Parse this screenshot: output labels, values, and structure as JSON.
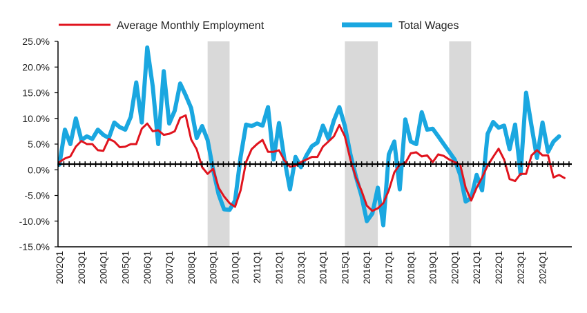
{
  "chart_data": {
    "type": "line",
    "title": "",
    "xlabel": "",
    "ylabel": "",
    "ylim": [
      -15,
      25
    ],
    "y_ticks": [
      "25.0%",
      "20.0%",
      "15.0%",
      "10.0%",
      "5.0%",
      "0.0%",
      "-5.0%",
      "-10.0%",
      "-15.0%"
    ],
    "y_tick_values": [
      25,
      20,
      15,
      10,
      5,
      0,
      -5,
      -10,
      -15
    ],
    "x_tick_labels": [
      "2002Q1",
      "2003Q1",
      "2004Q1",
      "2005Q1",
      "2006Q1",
      "2007Q1",
      "2008Q1",
      "2009Q1",
      "2010Q1",
      "2011Q1",
      "2012Q1",
      "2013Q1",
      "2014Q1",
      "2015Q1",
      "2016Q1",
      "2017Q1",
      "2018Q1",
      "2019Q1",
      "2020Q1",
      "2021Q1",
      "2022Q1",
      "2023Q1",
      "2024Q1"
    ],
    "x_start_year": 2002,
    "legend_position": "top",
    "zero_line": "dotted",
    "grid": false,
    "recession_shading": [
      {
        "start": "2008Q4",
        "end": "2009Q4"
      },
      {
        "start": "2015Q1",
        "end": "2016Q3"
      },
      {
        "start": "2019Q4",
        "end": "2020Q4"
      }
    ],
    "colors": {
      "shade": "#d9d9d9",
      "employment": "#e0141e",
      "wages": "#1aa7e0",
      "axis": "#000000"
    },
    "series": [
      {
        "name": "Average Monthly Employment",
        "values": [
          1.5,
          2.2,
          2.6,
          4.5,
          5.6,
          5.0,
          5.0,
          3.8,
          3.7,
          6.0,
          5.5,
          4.4,
          4.5,
          5.0,
          5.0,
          8.0,
          9.0,
          7.5,
          7.7,
          6.8,
          7.0,
          7.5,
          10.1,
          10.6,
          5.9,
          4.0,
          0.5,
          -0.8,
          0.2,
          -3.5,
          -5.2,
          -6.5,
          -7.2,
          -4.0,
          1.5,
          4.0,
          5.0,
          5.8,
          3.5,
          3.5,
          3.8,
          1.8,
          0.6,
          0.8,
          1.5,
          2.0,
          2.5,
          2.5,
          4.5,
          5.5,
          6.5,
          8.7,
          6.5,
          2.0,
          -1.5,
          -4.0,
          -7.0,
          -8.0,
          -7.5,
          -6.5,
          -4.0,
          -0.5,
          1.0,
          1.3,
          3.2,
          3.4,
          2.6,
          2.8,
          1.5,
          3.0,
          2.7,
          2.0,
          1.5,
          1.0,
          -3.5,
          -6.0,
          -3.5,
          -1.5,
          0.8,
          2.5,
          4.1,
          2.0,
          -1.8,
          -2.2,
          -0.8,
          -0.8,
          2.8,
          3.8,
          2.8,
          2.8,
          -1.5,
          -1.0,
          -1.6
        ]
      },
      {
        "name": "Total Wages",
        "values": [
          1.0,
          7.8,
          5.0,
          10.0,
          5.8,
          6.5,
          6.0,
          7.8,
          6.8,
          6.2,
          9.2,
          8.3,
          7.8,
          10.3,
          17.0,
          9.2,
          23.8,
          16.2,
          5.0,
          19.2,
          9.0,
          11.5,
          16.8,
          14.5,
          12.0,
          6.2,
          8.5,
          5.8,
          0.0,
          -4.8,
          -7.7,
          -7.8,
          -6.0,
          2.5,
          8.8,
          8.5,
          9.0,
          8.6,
          12.2,
          2.0,
          9.1,
          2.0,
          -3.8,
          2.5,
          0.5,
          2.8,
          4.6,
          5.3,
          8.6,
          6.0,
          9.6,
          12.2,
          8.5,
          3.0,
          -1.3,
          -5.0,
          -10.0,
          -8.5,
          -3.5,
          -10.8,
          3.0,
          5.5,
          -3.8,
          9.8,
          5.5,
          5.0,
          11.2,
          7.8,
          8.0,
          6.5,
          5.0,
          3.5,
          2.0,
          -1.0,
          -6.2,
          -5.5,
          -1.0,
          -4.0,
          7.0,
          9.3,
          8.2,
          8.6,
          4.0,
          8.8,
          -0.8,
          15.0,
          8.5,
          2.3,
          9.2,
          3.5,
          5.5,
          6.5
        ]
      }
    ]
  }
}
